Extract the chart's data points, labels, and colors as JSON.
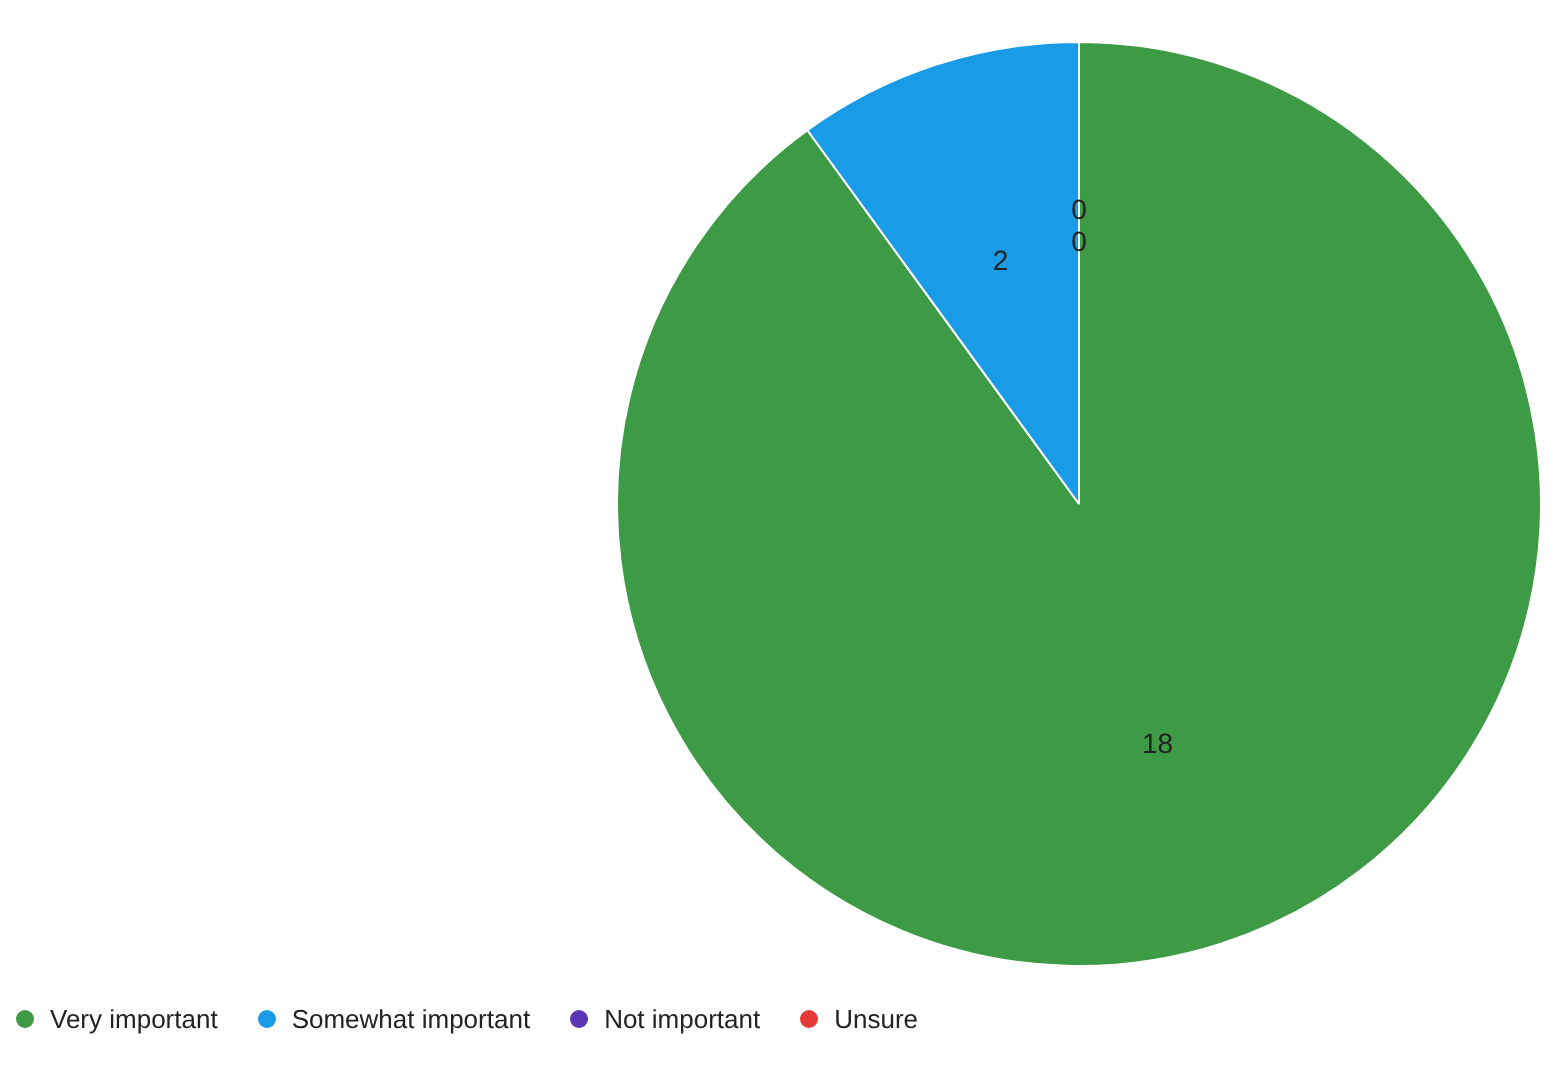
{
  "chart_data": {
    "type": "pie",
    "categories": [
      "Very important",
      "Somewhat important",
      "Not important",
      "Unsure"
    ],
    "values": [
      18,
      2,
      0,
      0
    ],
    "colors": [
      "#3d9a45",
      "#1a9be8",
      "#5a35b8",
      "#e53935"
    ],
    "value_labels": [
      "18",
      "2",
      "0",
      "0"
    ],
    "legend": "bottom"
  }
}
